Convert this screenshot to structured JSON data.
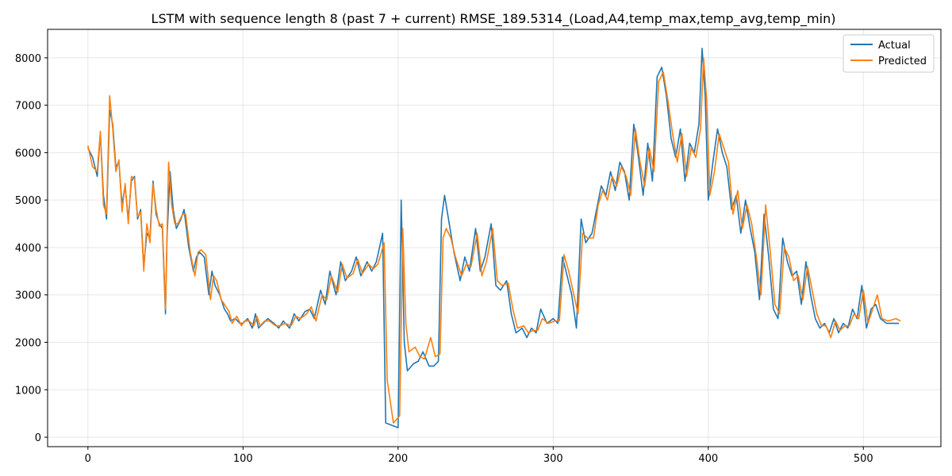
{
  "chart_data": {
    "type": "line",
    "title": "LSTM with sequence length 8 (past 7 + current) RMSE_189.5314_(Load,A4,temp_max,temp_avg,temp_min)",
    "xlabel": "",
    "ylabel": "",
    "xlim": [
      -26,
      550
    ],
    "ylim": [
      -200,
      8600
    ],
    "xticks": [
      0,
      100,
      200,
      300,
      400,
      500
    ],
    "yticks": [
      0,
      1000,
      2000,
      3000,
      4000,
      5000,
      6000,
      7000,
      8000
    ],
    "grid": true,
    "legend": "top-right",
    "colors": {
      "actual": "#1f77b4",
      "predicted": "#ff7f0e"
    },
    "series": [
      {
        "name": "Actual",
        "x": [
          0,
          3,
          6,
          8,
          10,
          12,
          14,
          16,
          18,
          20,
          22,
          24,
          26,
          28,
          30,
          32,
          34,
          36,
          38,
          40,
          42,
          44,
          46,
          48,
          50,
          51,
          53,
          55,
          57,
          60,
          62,
          65,
          68,
          70,
          72,
          75,
          78,
          80,
          82,
          85,
          88,
          90,
          92,
          95,
          98,
          100,
          103,
          106,
          108,
          110,
          113,
          116,
          120,
          123,
          126,
          130,
          133,
          136,
          140,
          143,
          146,
          150,
          153,
          156,
          160,
          163,
          166,
          170,
          173,
          176,
          180,
          183,
          186,
          190,
          192,
          196,
          200,
          202,
          204,
          206,
          210,
          213,
          216,
          220,
          223,
          226,
          228,
          230,
          233,
          236,
          240,
          243,
          246,
          250,
          253,
          256,
          260,
          263,
          266,
          270,
          273,
          276,
          280,
          283,
          286,
          289,
          292,
          296,
          300,
          303,
          306,
          309,
          312,
          315,
          318,
          321,
          325,
          328,
          331,
          334,
          337,
          340,
          343,
          346,
          349,
          352,
          355,
          358,
          361,
          364,
          367,
          370,
          373,
          376,
          379,
          382,
          385,
          388,
          391,
          394,
          396,
          398,
          400,
          403,
          406,
          409,
          412,
          415,
          418,
          421,
          424,
          427,
          430,
          433,
          436,
          439,
          442,
          445,
          448,
          451,
          454,
          457,
          460,
          463,
          466,
          469,
          472,
          475,
          478,
          481,
          484,
          487,
          490,
          493,
          496,
          499,
          502,
          505,
          508,
          511,
          515,
          520,
          523
        ],
        "values": [
          6100,
          5900,
          5500,
          6400,
          5100,
          4600,
          6900,
          6600,
          5700,
          5800,
          4900,
          5300,
          4600,
          5400,
          5500,
          4600,
          4800,
          3600,
          4300,
          4200,
          5400,
          4700,
          4500,
          4400,
          2600,
          4200,
          5600,
          4800,
          4400,
          4600,
          4800,
          4000,
          3500,
          3800,
          3900,
          3800,
          3000,
          3500,
          3200,
          3000,
          2700,
          2600,
          2450,
          2500,
          2400,
          2400,
          2500,
          2300,
          2600,
          2300,
          2400,
          2500,
          2400,
          2300,
          2450,
          2300,
          2600,
          2450,
          2650,
          2700,
          2500,
          3100,
          2800,
          3500,
          3000,
          3700,
          3300,
          3500,
          3800,
          3400,
          3700,
          3500,
          3700,
          4300,
          300,
          250,
          200,
          5000,
          2000,
          1400,
          1550,
          1600,
          1800,
          1500,
          1500,
          1600,
          4600,
          5100,
          4500,
          3900,
          3300,
          3800,
          3500,
          4400,
          3500,
          3800,
          4500,
          3200,
          3100,
          3300,
          2600,
          2200,
          2300,
          2100,
          2300,
          2200,
          2700,
          2400,
          2500,
          2400,
          3800,
          3400,
          3000,
          2300,
          4600,
          4100,
          4300,
          4800,
          5300,
          5100,
          5600,
          5200,
          5800,
          5600,
          5000,
          6600,
          5900,
          5100,
          6200,
          5400,
          7600,
          7800,
          7200,
          6300,
          5900,
          6500,
          5400,
          6200,
          6000,
          6600,
          8200,
          7200,
          5000,
          5800,
          6500,
          6000,
          5700,
          4800,
          5100,
          4300,
          5000,
          4400,
          3900,
          2900,
          4700,
          3800,
          2700,
          2500,
          4200,
          3700,
          3400,
          3500,
          2800,
          3700,
          3000,
          2500,
          2300,
          2400,
          2200,
          2500,
          2200,
          2400,
          2300,
          2700,
          2500,
          3200,
          2300,
          2700,
          2800,
          2500,
          2400,
          2400,
          2400
        ]
      },
      {
        "name": "Predicted",
        "x": [
          0,
          3,
          6,
          8,
          10,
          12,
          14,
          16,
          18,
          20,
          22,
          24,
          26,
          28,
          30,
          32,
          34,
          36,
          38,
          40,
          42,
          44,
          46,
          48,
          50,
          52,
          54,
          56,
          58,
          61,
          63,
          66,
          69,
          71,
          73,
          76,
          79,
          81,
          83,
          86,
          89,
          91,
          93,
          96,
          99,
          101,
          104,
          107,
          109,
          111,
          114,
          117,
          121,
          124,
          127,
          131,
          134,
          137,
          141,
          144,
          147,
          151,
          154,
          157,
          161,
          164,
          167,
          171,
          174,
          177,
          181,
          184,
          187,
          191,
          193,
          197,
          201,
          203,
          205,
          207,
          211,
          214,
          217,
          221,
          224,
          227,
          229,
          231,
          234,
          237,
          241,
          244,
          247,
          251,
          254,
          257,
          261,
          264,
          267,
          271,
          274,
          277,
          281,
          284,
          287,
          290,
          293,
          297,
          301,
          304,
          307,
          310,
          313,
          316,
          319,
          322,
          326,
          329,
          332,
          335,
          338,
          341,
          344,
          347,
          350,
          353,
          356,
          359,
          362,
          365,
          368,
          371,
          374,
          377,
          380,
          383,
          386,
          389,
          392,
          395,
          397,
          399,
          401,
          404,
          407,
          410,
          413,
          416,
          419,
          422,
          425,
          428,
          431,
          434,
          437,
          440,
          443,
          446,
          449,
          452,
          455,
          458,
          461,
          464,
          467,
          470,
          473,
          476,
          479,
          482,
          485,
          488,
          491,
          494,
          497,
          500,
          503,
          506,
          509,
          512,
          516,
          521,
          524
        ],
        "values": [
          6150,
          5700,
          5600,
          6450,
          4900,
          4700,
          7200,
          6500,
          5600,
          5850,
          4750,
          5350,
          4500,
          5500,
          5450,
          4650,
          4750,
          3500,
          4500,
          4100,
          5350,
          4800,
          4450,
          4500,
          2700,
          5800,
          4900,
          4500,
          4500,
          4700,
          4700,
          3900,
          3400,
          3900,
          3950,
          3850,
          2900,
          3400,
          3300,
          2900,
          2750,
          2650,
          2400,
          2550,
          2350,
          2450,
          2450,
          2350,
          2550,
          2350,
          2450,
          2450,
          2350,
          2350,
          2400,
          2350,
          2550,
          2500,
          2600,
          2750,
          2450,
          3000,
          2900,
          3400,
          3050,
          3650,
          3350,
          3450,
          3750,
          3450,
          3650,
          3550,
          3650,
          4100,
          1200,
          300,
          450,
          4400,
          2400,
          1800,
          1900,
          1700,
          1650,
          2100,
          1700,
          1750,
          4200,
          4400,
          4200,
          3800,
          3400,
          3650,
          3600,
          4300,
          3400,
          3700,
          4400,
          3300,
          3200,
          3250,
          2700,
          2300,
          2350,
          2200,
          2250,
          2250,
          2500,
          2400,
          2450,
          2450,
          3850,
          3500,
          3050,
          2600,
          4300,
          4200,
          4200,
          4900,
          5200,
          5000,
          5500,
          5300,
          5700,
          5500,
          5100,
          6500,
          5800,
          5300,
          6100,
          5600,
          7500,
          7700,
          7100,
          6400,
          5800,
          6400,
          5500,
          6100,
          5900,
          6500,
          8000,
          7100,
          5100,
          5600,
          6400,
          6100,
          5800,
          4700,
          5200,
          4400,
          4900,
          4500,
          3800,
          3000,
          4900,
          3900,
          2800,
          2600,
          4000,
          3800,
          3300,
          3400,
          2900,
          3600,
          3100,
          2600,
          2350,
          2350,
          2100,
          2450,
          2250,
          2350,
          2350,
          2600,
          2500,
          3100,
          2400,
          2700,
          3000,
          2500,
          2450,
          2500,
          2450
        ]
      }
    ]
  }
}
